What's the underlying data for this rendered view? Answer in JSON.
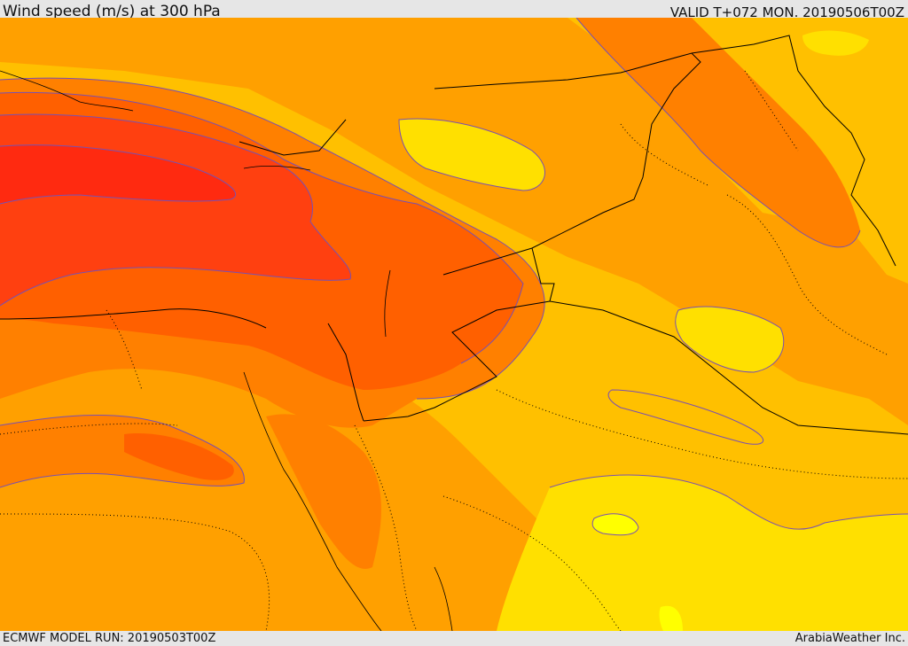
{
  "header": {
    "title": "Wind speed (m/s) at 300 hPa",
    "valid": "VALID T+072 MON. 20190506T00Z"
  },
  "footer": {
    "model_run": "ECMWF MODEL RUN: 20190503T00Z",
    "credit": "ArabiaWeather Inc."
  },
  "colors": {
    "band_lowest": "#ffff00",
    "band_low": "#ffe000",
    "band_mid": "#ffc000",
    "band_mid_high": "#ffa000",
    "band_high": "#ff8000",
    "band_higher": "#ff6000",
    "band_highest": "#ff4010",
    "band_core": "#ff2a10",
    "contour": "#7a50b0",
    "border": "#000000"
  }
}
